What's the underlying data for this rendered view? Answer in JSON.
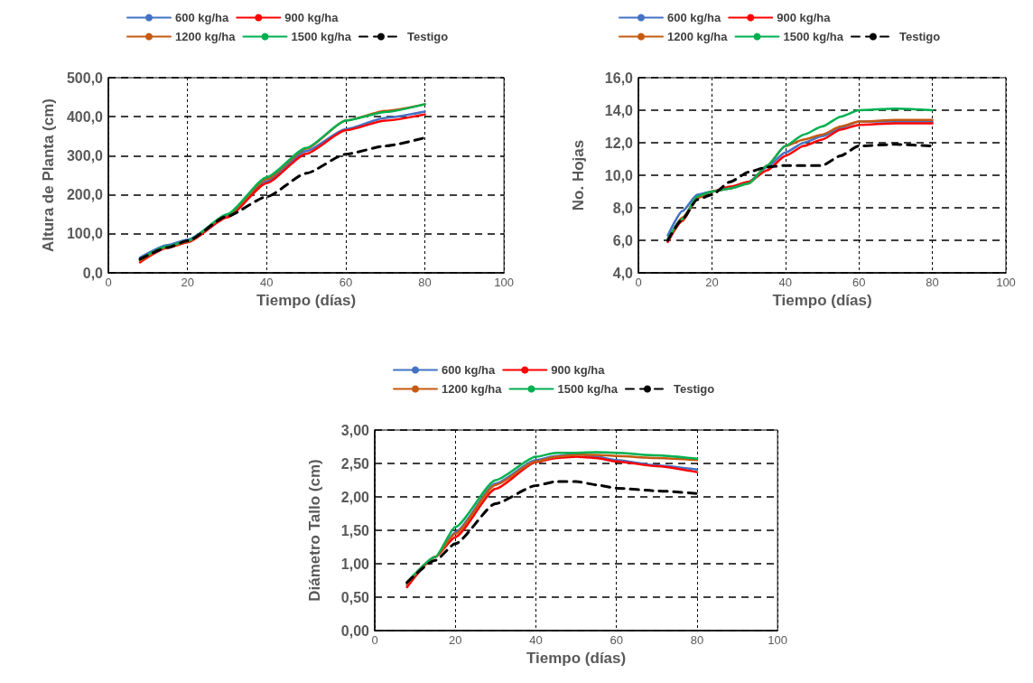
{
  "chart_data": [
    {
      "type": "line",
      "xlabel": "Tiempo (días)",
      "ylabel": "Altura de Planta (cm)",
      "xlim": [
        0,
        100
      ],
      "xticks": [
        0,
        20,
        40,
        60,
        80,
        100
      ],
      "ylim": [
        0,
        500
      ],
      "yticks": [
        {
          "value": 0,
          "label": "0,0"
        },
        {
          "value": 100,
          "label": "100,0"
        },
        {
          "value": 200,
          "label": "200,0"
        },
        {
          "value": 300,
          "label": "300,0"
        },
        {
          "value": 400,
          "label": "400,0"
        },
        {
          "value": 500,
          "label": "500,0"
        }
      ],
      "grid": true,
      "legend": "top",
      "marker": "none",
      "x": [
        8,
        15,
        20,
        30,
        40,
        50,
        60,
        70,
        80
      ],
      "series": [
        {
          "name": "600 kg/ha",
          "color": "#4472c4",
          "line_style": "solid",
          "values": [
            39,
            71,
            85,
            145,
            235,
            312,
            368,
            397,
            413
          ]
        },
        {
          "name": "900 kg/ha",
          "color": "#ff0000",
          "line_style": "solid",
          "values": [
            27,
            64,
            78,
            142,
            230,
            305,
            365,
            390,
            406
          ]
        },
        {
          "name": "1200 kg/ha",
          "color": "#c55a11",
          "line_style": "solid",
          "values": [
            31,
            66,
            80,
            148,
            240,
            318,
            390,
            415,
            432
          ]
        },
        {
          "name": "1500 kg/ha",
          "color": "#00b050",
          "line_style": "solid",
          "values": [
            35,
            68,
            82,
            150,
            245,
            320,
            390,
            412,
            432
          ]
        },
        {
          "name": "Testigo",
          "color": "#000000",
          "line_style": "dashed",
          "values": [
            35,
            65,
            82,
            145,
            195,
            255,
            304,
            325,
            346
          ]
        }
      ]
    },
    {
      "type": "line",
      "xlabel": "Tiempo (días)",
      "ylabel": "No. Hojas",
      "xlim": [
        0,
        100
      ],
      "xticks": [
        0,
        20,
        40,
        60,
        80,
        100
      ],
      "ylim": [
        4,
        16
      ],
      "yticks": [
        {
          "value": 4,
          "label": "4,0"
        },
        {
          "value": 6,
          "label": "6,0"
        },
        {
          "value": 8,
          "label": "8,0"
        },
        {
          "value": 10,
          "label": "10,0"
        },
        {
          "value": 12,
          "label": "12,0"
        },
        {
          "value": 14,
          "label": "14,0"
        },
        {
          "value": 16,
          "label": "16,0"
        }
      ],
      "grid": true,
      "legend": "top",
      "marker": "none",
      "x": [
        8,
        12,
        16,
        20,
        25,
        30,
        35,
        40,
        45,
        50,
        55,
        60,
        70,
        80
      ],
      "series": [
        {
          "name": "600 kg/ha",
          "color": "#4472c4",
          "line_style": "solid",
          "values": [
            6.3,
            7.8,
            8.8,
            9.0,
            9.2,
            9.6,
            10.5,
            11.4,
            12.0,
            12.4,
            12.9,
            13.3,
            13.3,
            13.3
          ]
        },
        {
          "name": "900 kg/ha",
          "color": "#ff0000",
          "line_style": "solid",
          "values": [
            5.9,
            7.2,
            8.6,
            9.0,
            9.3,
            9.6,
            10.3,
            11.2,
            11.8,
            12.2,
            12.8,
            13.1,
            13.2,
            13.2
          ]
        },
        {
          "name": "1200 kg/ha",
          "color": "#c55a11",
          "line_style": "solid",
          "values": [
            6.0,
            7.4,
            8.6,
            9.0,
            9.2,
            9.5,
            10.6,
            11.8,
            12.2,
            12.5,
            13.0,
            13.3,
            13.4,
            13.4
          ]
        },
        {
          "name": "1500 kg/ha",
          "color": "#00b050",
          "line_style": "solid",
          "values": [
            6.1,
            7.3,
            8.7,
            9.0,
            9.2,
            9.5,
            10.6,
            11.8,
            12.5,
            13.0,
            13.6,
            14.0,
            14.1,
            14.0
          ]
        },
        {
          "name": "Testigo",
          "color": "#000000",
          "line_style": "dashed",
          "values": [
            6.0,
            7.3,
            8.5,
            8.8,
            9.6,
            10.2,
            10.5,
            10.6,
            10.6,
            10.6,
            11.2,
            11.8,
            11.9,
            11.8
          ]
        }
      ]
    },
    {
      "type": "line",
      "xlabel": "Tiempo (días)",
      "ylabel": "Diámetro Tallo (cm)",
      "xlim": [
        0,
        100
      ],
      "xticks": [
        0,
        20,
        40,
        60,
        80,
        100
      ],
      "ylim": [
        0,
        3
      ],
      "yticks": [
        {
          "value": 0,
          "label": "0,00"
        },
        {
          "value": 0.5,
          "label": "0,50"
        },
        {
          "value": 1,
          "label": "1,00"
        },
        {
          "value": 1.5,
          "label": "1,50"
        },
        {
          "value": 2,
          "label": "2,00"
        },
        {
          "value": 2.5,
          "label": "2,50"
        },
        {
          "value": 3,
          "label": "3,00"
        }
      ],
      "grid": true,
      "legend": "top",
      "marker": "none",
      "x": [
        8,
        15,
        20,
        30,
        40,
        45,
        50,
        55,
        60,
        70,
        80
      ],
      "series": [
        {
          "name": "600 kg/ha",
          "color": "#4472c4",
          "line_style": "solid",
          "values": [
            0.68,
            1.1,
            1.47,
            2.2,
            2.55,
            2.61,
            2.65,
            2.6,
            2.55,
            2.47,
            2.41
          ]
        },
        {
          "name": "900 kg/ha",
          "color": "#ff0000",
          "line_style": "solid",
          "values": [
            0.65,
            1.1,
            1.4,
            2.12,
            2.52,
            2.58,
            2.6,
            2.58,
            2.53,
            2.46,
            2.37
          ]
        },
        {
          "name": "1200 kg/ha",
          "color": "#c55a11",
          "line_style": "solid",
          "values": [
            0.7,
            1.1,
            1.45,
            2.18,
            2.53,
            2.6,
            2.63,
            2.63,
            2.61,
            2.58,
            2.55
          ]
        },
        {
          "name": "1500 kg/ha",
          "color": "#00b050",
          "line_style": "solid",
          "values": [
            0.72,
            1.1,
            1.55,
            2.25,
            2.6,
            2.66,
            2.66,
            2.67,
            2.66,
            2.62,
            2.57
          ]
        },
        {
          "name": "Testigo",
          "color": "#000000",
          "line_style": "dashed",
          "values": [
            0.72,
            1.05,
            1.3,
            1.9,
            2.17,
            2.23,
            2.23,
            2.18,
            2.13,
            2.09,
            2.05
          ]
        }
      ]
    }
  ]
}
